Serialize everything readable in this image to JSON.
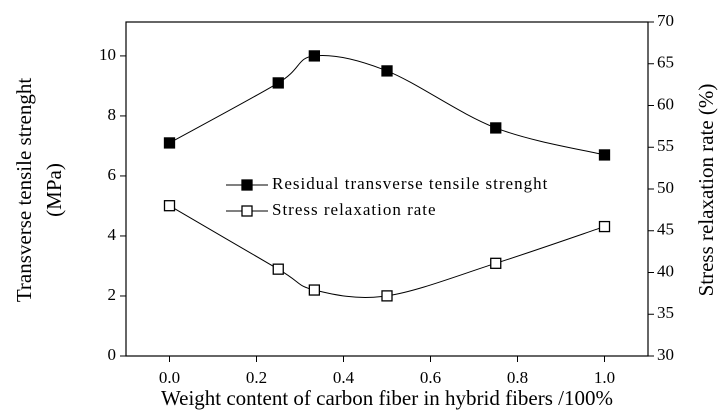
{
  "chart_data": {
    "type": "line",
    "x_label": "Weight content of carbon fiber in hybrid fibers /100%",
    "y_label": [
      "Transverse tensile strenght",
      "(MPa)"
    ],
    "y2_label": "Stress relaxation rate (%)",
    "xlim": [
      -0.1,
      1.1
    ],
    "xticks": [
      {
        "value": 0,
        "label": "0.0"
      },
      0.2,
      0.4,
      0.6,
      0.8,
      {
        "value": 1,
        "label": "1.0"
      }
    ],
    "ylim": [
      0,
      11.13
    ],
    "yticks": [
      0,
      2,
      4,
      6,
      8,
      10
    ],
    "y2lim": [
      30,
      70
    ],
    "y2ticks": [
      30,
      35,
      40,
      45,
      50,
      55,
      60,
      65,
      70
    ],
    "series": [
      {
        "name": "Residual transverse tensile strenght",
        "color": "#000000",
        "marker": "filled",
        "x": [
          0,
          0.25,
          0.333,
          0.5,
          0.75,
          1.0
        ],
        "values": [
          7.1,
          9.1,
          10.0,
          9.5,
          7.6,
          6.7
        ]
      },
      {
        "name": "Stress relaxation rate",
        "color": "#000000",
        "marker": "open",
        "axis": "y2",
        "x": [
          0,
          0.25,
          0.333,
          0.5,
          0.75,
          1.0
        ],
        "values": [
          48.0,
          40.4,
          37.9,
          37.2,
          41.1,
          45.5
        ]
      }
    ]
  }
}
